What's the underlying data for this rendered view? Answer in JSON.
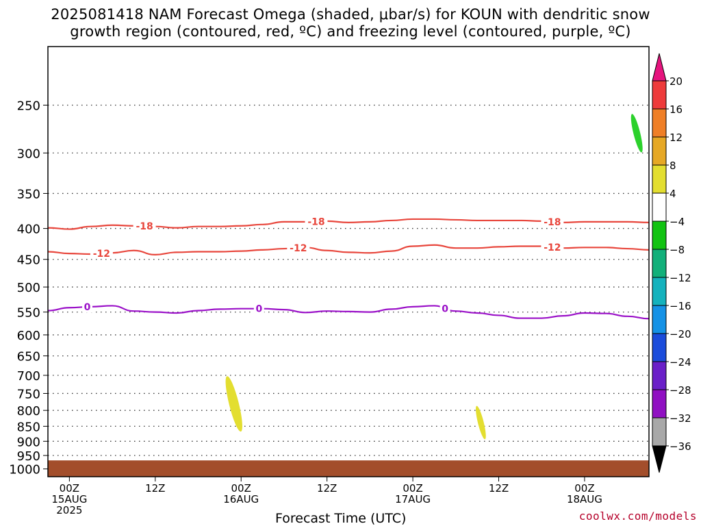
{
  "title_line1": "2025081418 NAM Forecast Omega (shaded, μbar/s) for KOUN with dendritic snow",
  "title_line2": "growth region (contoured, red, ºC) and freezing level (contoured, purple, ºC)",
  "x_axis_label": "Forecast Time (UTC)",
  "credit": "coolwx.com/models",
  "chart_data": {
    "type": "contour",
    "x_range_hours": [
      -3,
      81
    ],
    "x_ticks": [
      {
        "hour": 0,
        "line1": "00Z",
        "line2": "15AUG",
        "line3": "2025"
      },
      {
        "hour": 12,
        "line1": "12Z",
        "line2": "",
        "line3": ""
      },
      {
        "hour": 24,
        "line1": "00Z",
        "line2": "16AUG",
        "line3": ""
      },
      {
        "hour": 36,
        "line1": "12Z",
        "line2": "",
        "line3": ""
      },
      {
        "hour": 48,
        "line1": "00Z",
        "line2": "17AUG",
        "line3": ""
      },
      {
        "hour": 60,
        "line1": "12Z",
        "line2": "",
        "line3": ""
      },
      {
        "hour": 72,
        "line1": "00Z",
        "line2": "18AUG",
        "line3": ""
      }
    ],
    "y_axis": "pressure (mb), log scale",
    "y_range_mb": [
      200,
      1030
    ],
    "pressure_levels": [
      250,
      300,
      350,
      400,
      450,
      500,
      550,
      600,
      650,
      700,
      750,
      800,
      850,
      900,
      950,
      1000
    ],
    "grid": true,
    "contours": [
      {
        "value": -18,
        "label": "-18",
        "color": "#e8463c",
        "x": [
          -3,
          0,
          3,
          6,
          9,
          12,
          15,
          18,
          21,
          24,
          27,
          30,
          33,
          36,
          39,
          42,
          45,
          48,
          51,
          54,
          57,
          60,
          63,
          66,
          69,
          72,
          75,
          78,
          81
        ],
        "y_mb": [
          399,
          401,
          397,
          395,
          396,
          397,
          399,
          397,
          397,
          396,
          394,
          390,
          390,
          389,
          391,
          390,
          388,
          386,
          386,
          387,
          388,
          388,
          388,
          389,
          391,
          390,
          390,
          390,
          391
        ],
        "label_hours": [
          10.5,
          34.5,
          67.5
        ]
      },
      {
        "value": -12,
        "label": "-12",
        "color": "#e8463c",
        "x": [
          -3,
          0,
          3,
          6,
          9,
          12,
          15,
          18,
          21,
          24,
          27,
          30,
          33,
          36,
          39,
          42,
          45,
          48,
          51,
          54,
          57,
          60,
          63,
          66,
          69,
          72,
          75,
          78,
          81
        ],
        "y_mb": [
          437,
          440,
          441,
          439,
          435,
          442,
          438,
          437,
          437,
          436,
          434,
          432,
          430,
          435,
          438,
          439,
          436,
          428,
          426,
          431,
          431,
          429,
          428,
          428,
          431,
          430,
          430,
          432,
          434
        ],
        "label_hours": [
          4.5,
          32,
          67.5
        ]
      },
      {
        "value": 0,
        "label": "0",
        "color": "#9a10c8",
        "x": [
          -3,
          0,
          3,
          6,
          9,
          12,
          15,
          18,
          21,
          24,
          27,
          30,
          33,
          36,
          39,
          42,
          45,
          48,
          51,
          54,
          57,
          60,
          63,
          66,
          69,
          72,
          75,
          78,
          81
        ],
        "y_mb": [
          547,
          541,
          539,
          537,
          548,
          550,
          552,
          547,
          544,
          543,
          543,
          545,
          551,
          548,
          549,
          550,
          544,
          539,
          537,
          548,
          552,
          557,
          563,
          563,
          558,
          552,
          553,
          559,
          564
        ],
        "label_hours": [
          2.5,
          26.5,
          52.5
        ]
      }
    ],
    "shaded_regions": [
      {
        "name": "positive omega 4-8",
        "color": "#e3de30",
        "center_hour": 23,
        "p_top_mb": 700,
        "p_bottom_mb": 870
      },
      {
        "name": "positive omega 4-8",
        "color": "#e3de30",
        "center_hour": 57.5,
        "p_top_mb": 785,
        "p_bottom_mb": 895
      },
      {
        "name": "negative omega -4 to -8",
        "color": "#2cd12c",
        "center_hour": 79.3,
        "p_top_mb": 258,
        "p_bottom_mb": 300
      }
    ],
    "terrain": {
      "color": "#a34e2b",
      "surface_mb": 968
    },
    "colorbar": {
      "labels": [
        "20",
        "16",
        "12",
        "8",
        "4",
        "−4",
        "−8",
        "−12",
        "−16",
        "−20",
        "−24",
        "−28",
        "−32",
        "−36"
      ],
      "colors": [
        "#ee3b3b",
        "#ef7f27",
        "#e6a825",
        "#e3de30",
        "#ffffff",
        "#12c312",
        "#12b07a",
        "#14b2bd",
        "#1592e6",
        "#1b4cdb",
        "#6a1fc8",
        "#9010c2",
        "#a8a8a8"
      ],
      "top_arrow_color": "#e6147e",
      "bottom_arrow_color": "#000000"
    }
  }
}
